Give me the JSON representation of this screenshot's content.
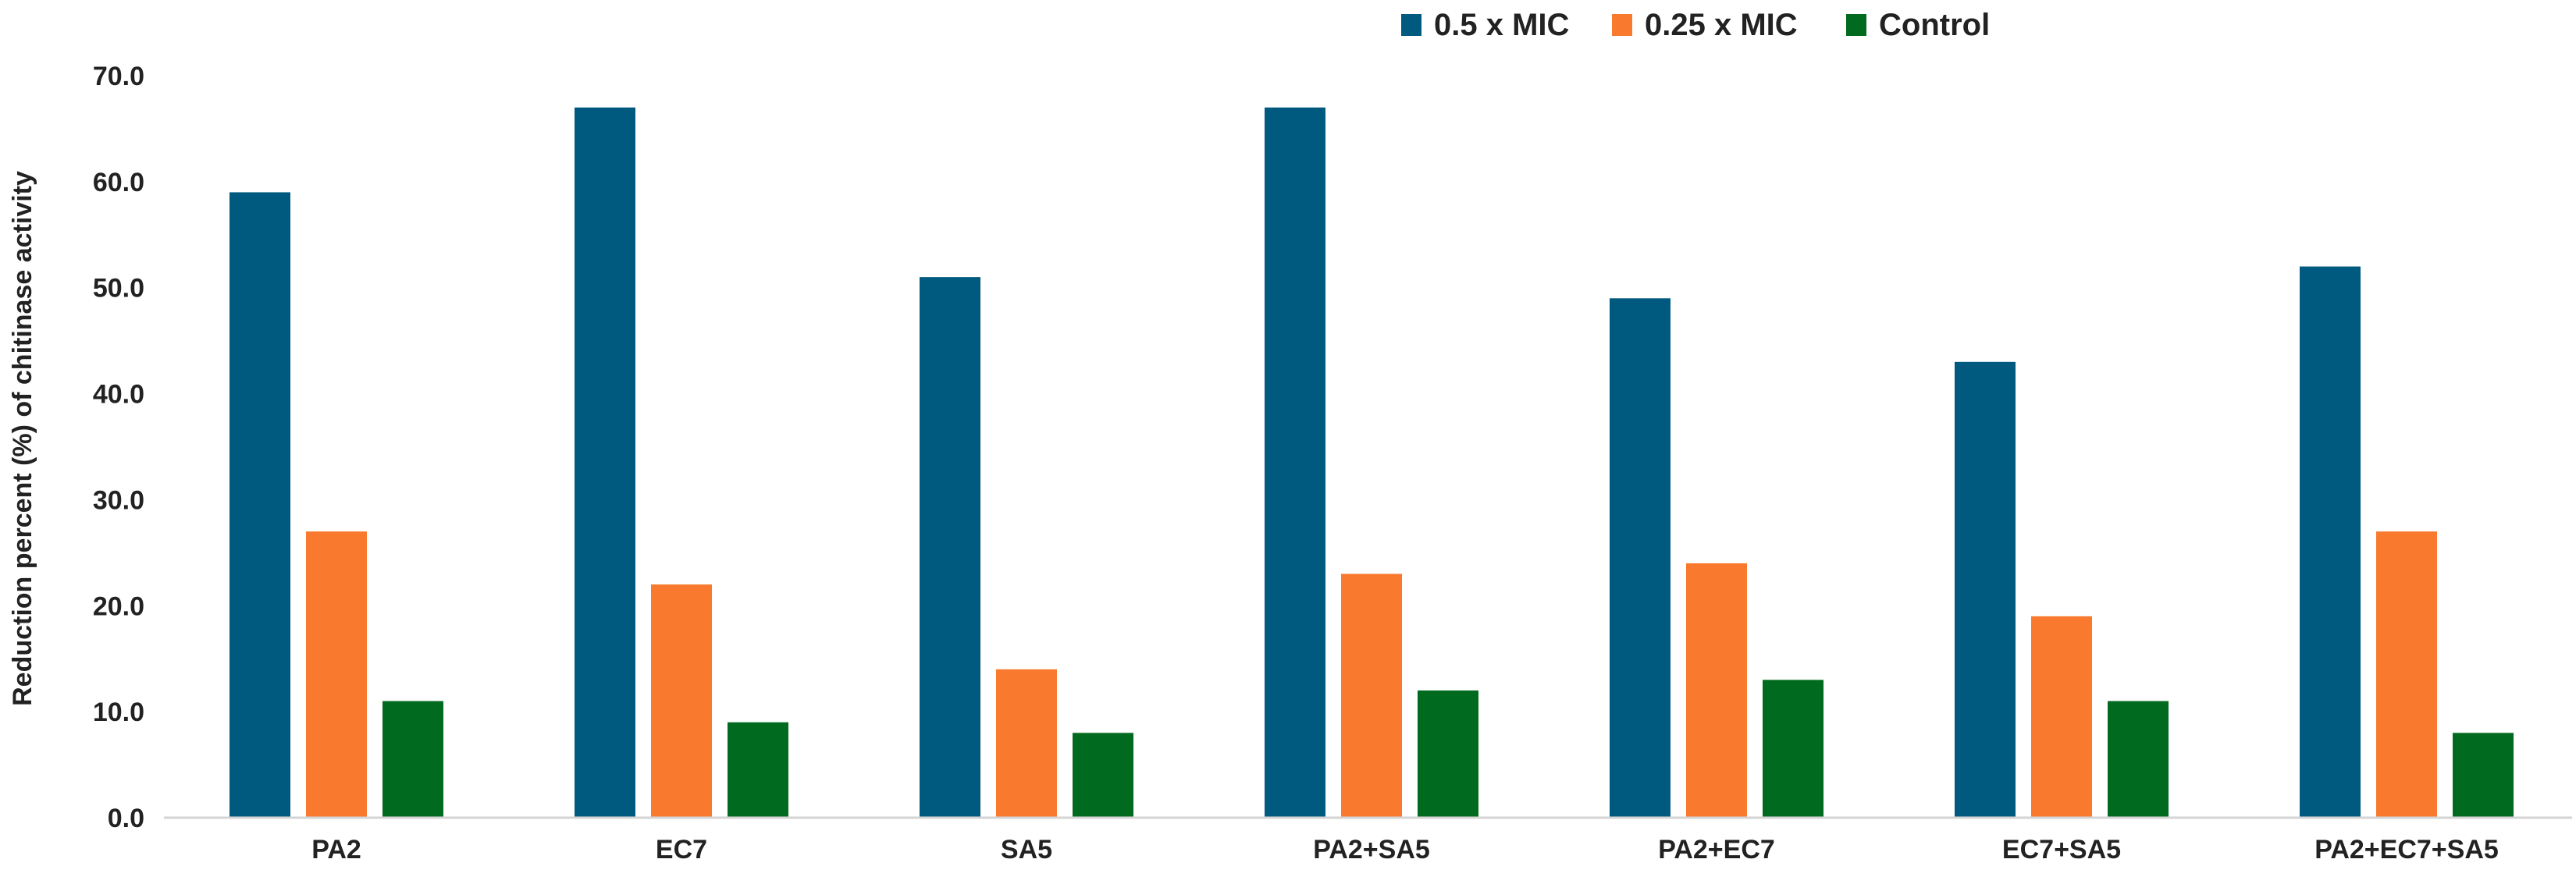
{
  "chart_data": {
    "type": "bar",
    "title": "",
    "xlabel": "",
    "ylabel": "Reduction percent (%) of chitinase activity",
    "ylim": [
      0,
      70
    ],
    "yticks": [
      "0.0",
      "10.0",
      "20.0",
      "30.0",
      "40.0",
      "50.0",
      "60.0",
      "70.0"
    ],
    "grid": false,
    "legend_position": "top-right",
    "categories": [
      "PA2",
      "EC7",
      "SA5",
      "PA2+SA5",
      "PA2+EC7",
      "EC7+SA5",
      "PA2+EC7+SA5"
    ],
    "series": [
      {
        "name": "0.5 x MIC",
        "color": "#005A80",
        "values": [
          59,
          67,
          51,
          67,
          49,
          43,
          52
        ]
      },
      {
        "name": "0.25 x MIC",
        "color": "#F97A2F",
        "values": [
          27,
          22,
          14,
          23,
          24,
          19,
          27
        ]
      },
      {
        "name": "Control",
        "color": "#006A1E",
        "values": [
          11,
          9,
          8,
          12,
          13,
          11,
          8
        ]
      }
    ]
  }
}
